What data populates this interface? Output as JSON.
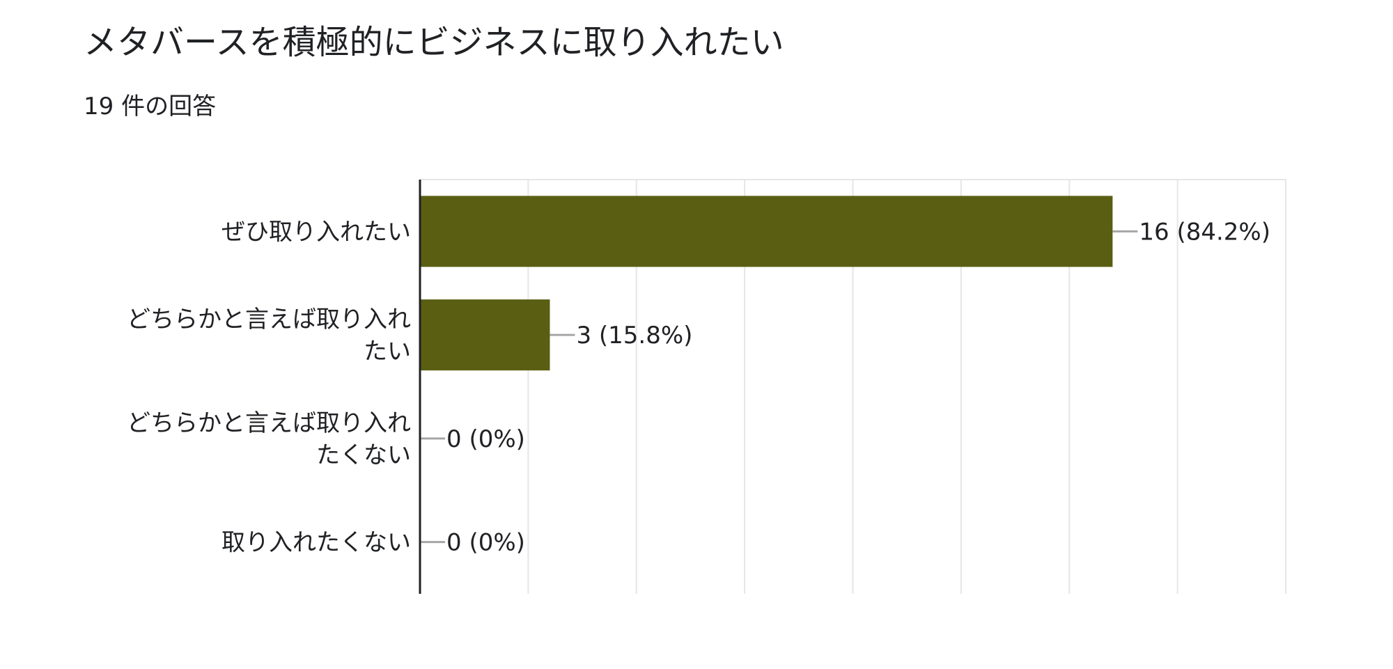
{
  "question": {
    "title": "メタバースを積極的にビジネスに取り入れたい",
    "response_count": "19 件の回答"
  },
  "colors": {
    "bar": "#5a5e12",
    "grid": "#e6e6e6",
    "axis": "#202124",
    "leader": "#a6a6a6",
    "text": "#202124"
  },
  "chart_data": {
    "type": "bar",
    "orientation": "horizontal",
    "categories": [
      [
        "ぜひ取り入れたい"
      ],
      [
        "どちらかと言えば取り入れ",
        "たい"
      ],
      [
        "どちらかと言えば取り入れ",
        "たくない"
      ],
      [
        "取り入れたくない"
      ]
    ],
    "values": [
      16,
      3,
      0,
      0
    ],
    "percents": [
      "84.2%",
      "15.8%",
      "0%",
      "0%"
    ],
    "data_labels": [
      "16 (84.2%)",
      "3 (15.8%)",
      "0 (0%)",
      "0 (0%)"
    ],
    "xlim": [
      0,
      20
    ],
    "grid": true,
    "legend": "none"
  }
}
